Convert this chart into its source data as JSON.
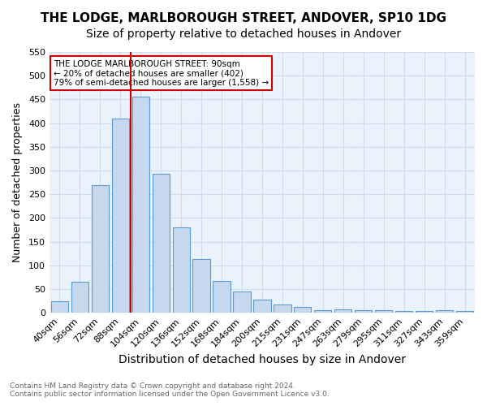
{
  "title": "THE LODGE, MARLBOROUGH STREET, ANDOVER, SP10 1DG",
  "subtitle": "Size of property relative to detached houses in Andover",
  "xlabel": "Distribution of detached houses by size in Andover",
  "ylabel": "Number of detached properties",
  "footer_line1": "Contains HM Land Registry data © Crown copyright and database right 2024.",
  "footer_line2": "Contains public sector information licensed under the Open Government Licence v3.0.",
  "categories": [
    "40sqm",
    "56sqm",
    "72sqm",
    "88sqm",
    "104sqm",
    "120sqm",
    "136sqm",
    "152sqm",
    "168sqm",
    "184sqm",
    "200sqm",
    "215sqm",
    "231sqm",
    "247sqm",
    "263sqm",
    "279sqm",
    "295sqm",
    "311sqm",
    "327sqm",
    "343sqm",
    "359sqm"
  ],
  "values": [
    25,
    65,
    270,
    410,
    455,
    293,
    180,
    113,
    68,
    45,
    28,
    17,
    13,
    6,
    8,
    5,
    5,
    3,
    3,
    5,
    4
  ],
  "bar_color": "#c5d8ed",
  "bar_edge_color": "#5b9bd5",
  "bar_edge_width": 0.8,
  "red_line_x": 3.5,
  "annotation_title": "THE LODGE MARLBOROUGH STREET: 90sqm",
  "annotation_line1": "← 20% of detached houses are smaller (402)",
  "annotation_line2": "79% of semi-detached houses are larger (1,558) →",
  "annotation_box_color": "#ffffff",
  "annotation_box_edge_color": "#cc0000",
  "red_line_color": "#cc0000",
  "grid_color": "#d0dce8",
  "background_color": "#eaf2fb",
  "ylim": [
    0,
    550
  ],
  "yticks": [
    0,
    50,
    100,
    150,
    200,
    250,
    300,
    350,
    400,
    450,
    500,
    550
  ],
  "title_fontsize": 11,
  "subtitle_fontsize": 10,
  "xlabel_fontsize": 10,
  "ylabel_fontsize": 9,
  "tick_fontsize": 8
}
